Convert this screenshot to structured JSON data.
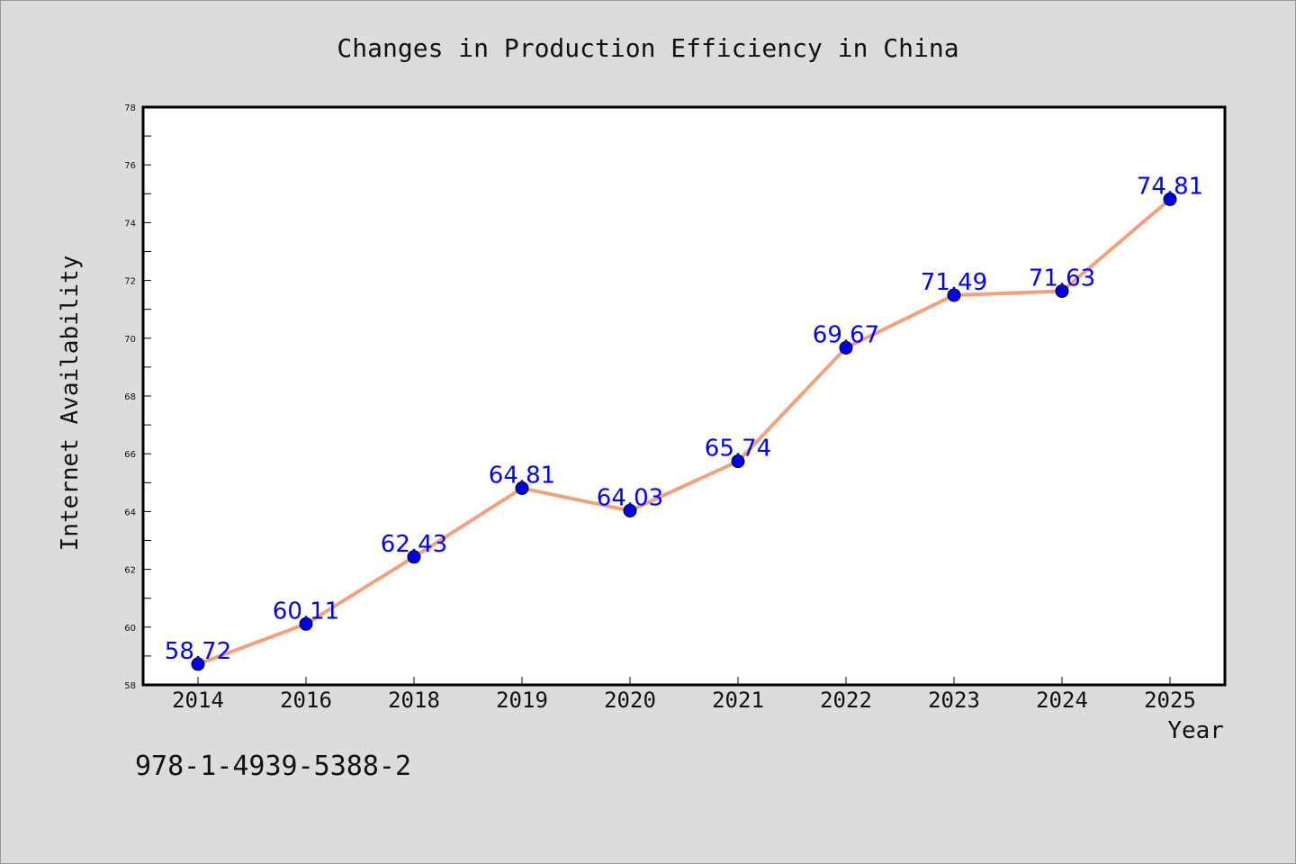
{
  "chart_data": {
    "type": "line",
    "title": "Changes in Production Efficiency in China",
    "xlabel": "Year",
    "ylabel": "Internet Availability",
    "categories": [
      "2014",
      "2016",
      "2018",
      "2019",
      "2020",
      "2021",
      "2022",
      "2023",
      "2024",
      "2025"
    ],
    "series": [
      {
        "values": [
          58.72,
          60.11,
          62.43,
          64.81,
          64.03,
          65.74,
          69.67,
          71.49,
          71.63,
          74.81
        ],
        "line_color": "#f4a07a",
        "marker_color": "#0000ee"
      }
    ],
    "data_labels": [
      "58.72",
      "60.11",
      "62.43",
      "64.81",
      "64.03",
      "65.74",
      "69.67",
      "71.49",
      "71.63",
      "74.81"
    ],
    "data_label_color": "#0000ff",
    "ylim": [
      58,
      78
    ],
    "yticks": [
      "58",
      "60",
      "62",
      "64",
      "66",
      "68",
      "70",
      "72",
      "74",
      "76",
      "78"
    ],
    "grid": false,
    "legend": "none"
  },
  "footer": {
    "code": "978-1-4939-5388-2"
  }
}
